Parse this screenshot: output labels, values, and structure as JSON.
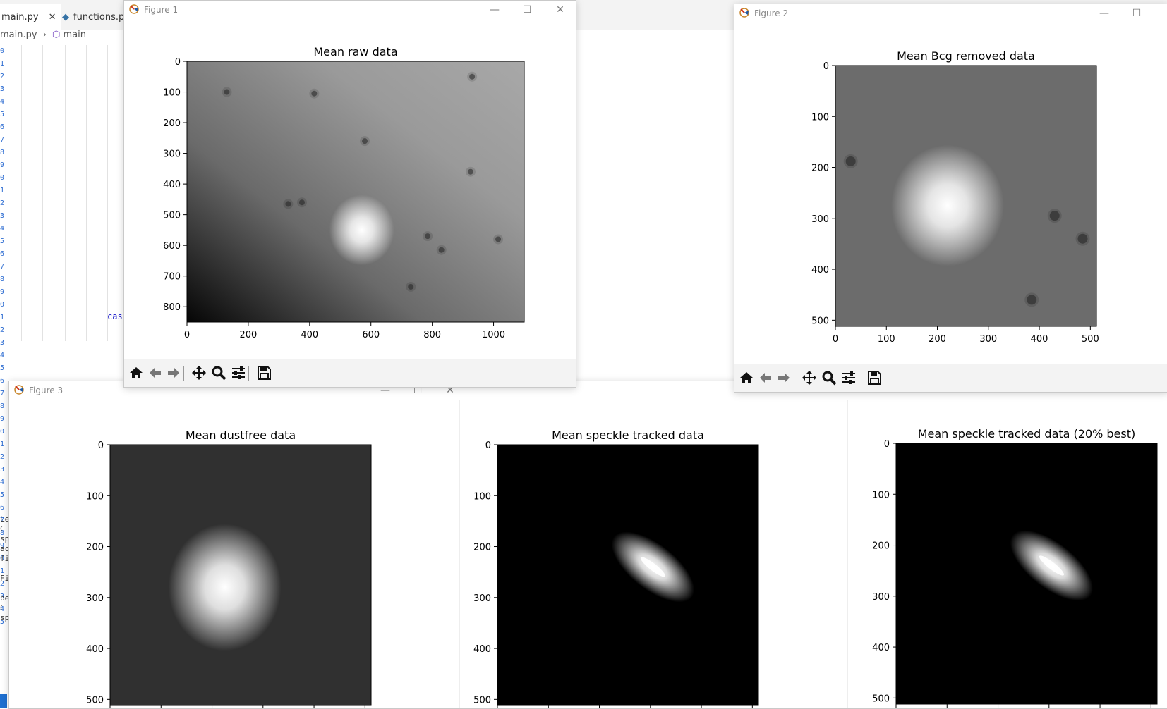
{
  "editor": {
    "tabs": [
      {
        "label": "main.py",
        "close": "✕"
      },
      {
        "label": "functions.p"
      }
    ],
    "breadcrumb": {
      "file": "main.py",
      "separator": "›",
      "symbol": "main"
    },
    "line_numbers": [
      "0",
      "1",
      "2",
      "3",
      "4",
      "5",
      "6",
      "7",
      "8",
      "9",
      "0",
      "1",
      "2",
      "3",
      "4",
      "5",
      "6",
      "7",
      "8",
      "9",
      "0",
      "1",
      "2",
      "3",
      "4",
      "5",
      "6",
      "7",
      "8",
      "9",
      "0",
      "1",
      "2",
      "3",
      "4",
      "5",
      "6",
      "7",
      "8",
      "9",
      "0",
      "1",
      "2",
      "3",
      "4",
      "5"
    ],
    "code_keyword": "cas",
    "side_fragments": [
      "Le",
      "C",
      "sp",
      "ac",
      "fi",
      "",
      "Fi",
      "",
      "pe",
      "C",
      "sp"
    ]
  },
  "windows": {
    "figure1": {
      "title": "Figure 1"
    },
    "figure2": {
      "title": "Figure 2"
    },
    "figure3": {
      "title": "Figure 3"
    }
  },
  "window_controls": {
    "minimize": "—",
    "maximize": "☐",
    "close": "✕"
  },
  "toolbar_icons": [
    "home-icon",
    "back-arrow-icon",
    "forward-arrow-icon",
    "pan-move-icon",
    "zoom-magnifier-icon",
    "configure-subplots-icon",
    "save-floppy-icon"
  ],
  "chart_data": [
    {
      "type": "heatmap",
      "title": "Mean raw data",
      "xlim": [
        0,
        1100
      ],
      "ylim": [
        850,
        0
      ],
      "xticks": [
        0,
        200,
        400,
        600,
        800,
        1000
      ],
      "yticks": [
        0,
        100,
        200,
        300,
        400,
        500,
        600,
        700,
        800
      ],
      "colormap": "gray",
      "bright_spot": [
        570,
        550
      ],
      "dust_spots": [
        [
          130,
          100
        ],
        [
          415,
          105
        ],
        [
          930,
          50
        ],
        [
          580,
          260
        ],
        [
          330,
          465
        ],
        [
          375,
          460
        ],
        [
          785,
          570
        ],
        [
          830,
          615
        ],
        [
          730,
          735
        ],
        [
          1015,
          580
        ],
        [
          925,
          360
        ]
      ]
    },
    {
      "type": "heatmap",
      "title": "Mean Bcg removed data",
      "xlim": [
        0,
        512
      ],
      "ylim": [
        512,
        0
      ],
      "xticks": [
        0,
        100,
        200,
        300,
        400,
        500
      ],
      "yticks": [
        0,
        100,
        200,
        300,
        400,
        500
      ],
      "colormap": "gray",
      "bright_spot": [
        220,
        275
      ],
      "dust_spots": [
        [
          30,
          188
        ],
        [
          430,
          295
        ],
        [
          485,
          340
        ],
        [
          385,
          460
        ]
      ]
    },
    {
      "type": "heatmap",
      "title": "Mean dustfree data",
      "xlim": [
        0,
        512
      ],
      "ylim": [
        512,
        0
      ],
      "yticks": [
        0,
        100,
        200,
        300,
        400,
        500
      ],
      "colormap": "gray",
      "bright_spot": [
        225,
        280
      ]
    },
    {
      "type": "heatmap",
      "title": "Mean speckle tracked data",
      "xlim": [
        0,
        512
      ],
      "ylim": [
        512,
        0
      ],
      "yticks": [
        0,
        100,
        200,
        300,
        400,
        500
      ],
      "colormap": "gray",
      "bright_spot": [
        305,
        240
      ]
    },
    {
      "type": "heatmap",
      "title": "Mean speckle tracked data (20% best)",
      "xlim": [
        0,
        512
      ],
      "ylim": [
        512,
        0
      ],
      "yticks": [
        0,
        100,
        200,
        300,
        400,
        500
      ],
      "colormap": "gray",
      "bright_spot": [
        305,
        240
      ]
    }
  ]
}
